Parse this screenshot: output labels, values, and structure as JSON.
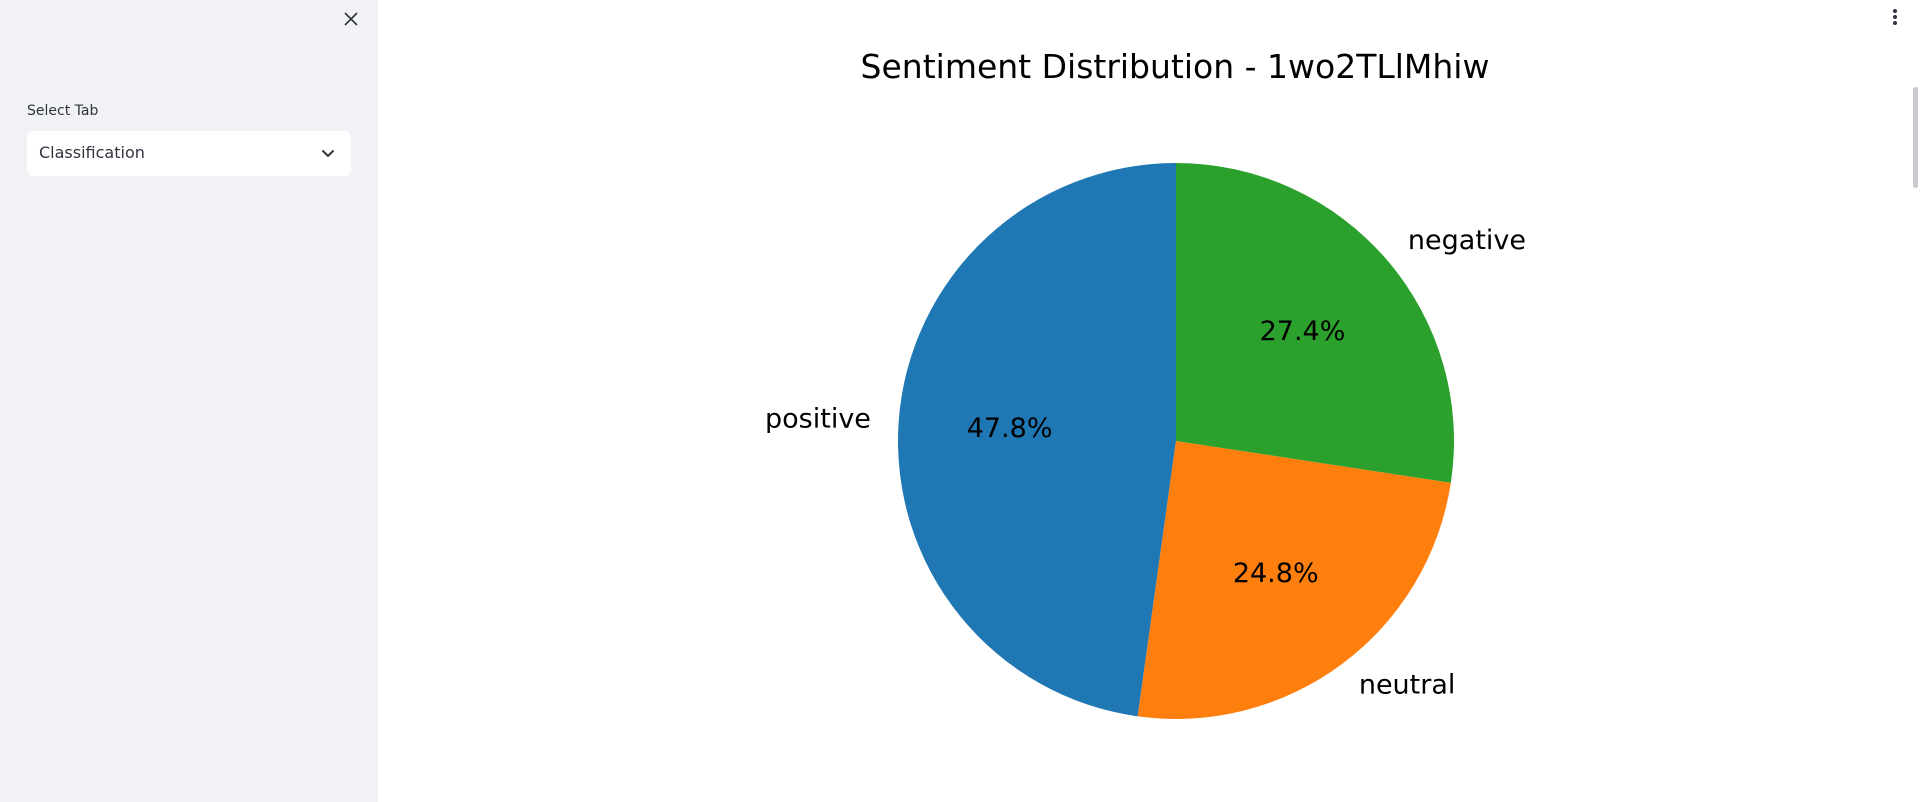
{
  "sidebar": {
    "select_label": "Select Tab",
    "selected_value": "Classification",
    "close_icon": "close-icon",
    "chevron_icon": "chevron-down-icon"
  },
  "main": {
    "menu_icon": "vertical-ellipsis-icon"
  },
  "chart_data": {
    "type": "pie",
    "title": "Sentiment Distribution - 1wo2TLlMhiw",
    "start_angle": 90,
    "direction": "counterclockwise",
    "slices": [
      {
        "label": "positive",
        "value": 47.8,
        "pct_label": "47.8%",
        "color": "#1f77b4"
      },
      {
        "label": "neutral",
        "value": 24.8,
        "pct_label": "24.8%",
        "color": "#ff7f0e"
      },
      {
        "label": "negative",
        "value": 27.4,
        "pct_label": "27.4%",
        "color": "#2ca02c"
      }
    ]
  }
}
